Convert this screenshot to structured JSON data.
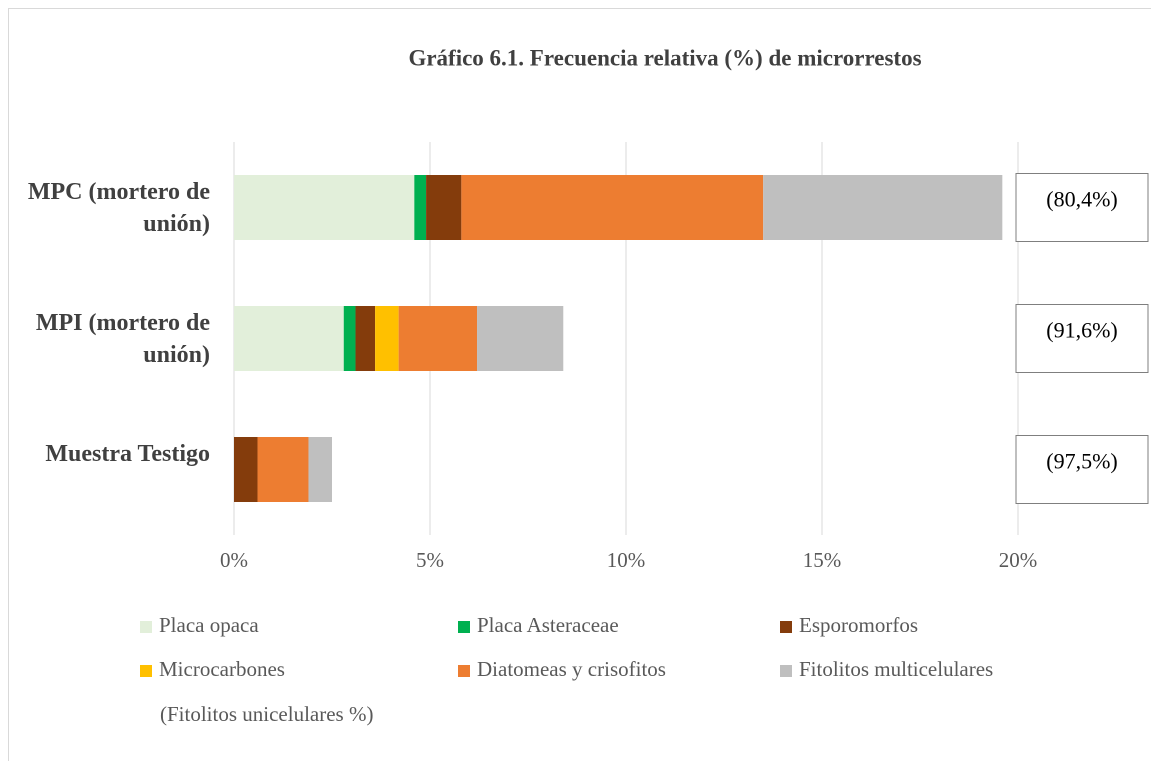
{
  "chart_data": {
    "type": "stacked_barh",
    "title": "Gráfico 6.1. Frecuencia relativa (%) de microrrestos",
    "categories": [
      "MPC (mortero de unión)",
      "MPI (mortero de unión)",
      "Muestra Testigo"
    ],
    "annotations": [
      "(80,4%)",
      "(91,6%)",
      "(97,5%)"
    ],
    "series": [
      {
        "name": "Placa opaca",
        "color": "#e2efda",
        "values": [
          4.6,
          2.8,
          0
        ]
      },
      {
        "name": "Placa Asteraceae",
        "color": "#00b050",
        "values": [
          0.3,
          0.3,
          0
        ]
      },
      {
        "name": "Esporomorfos",
        "color": "#843c0c",
        "values": [
          0.9,
          0.5,
          0.6
        ]
      },
      {
        "name": "Microcarbones",
        "color": "#ffc000",
        "values": [
          0,
          0.6,
          0
        ]
      },
      {
        "name": "Diatomeas y crisofitos",
        "color": "#ed7d31",
        "values": [
          7.7,
          2.0,
          1.3
        ]
      },
      {
        "name": "Fitolitos multicelulares",
        "color": "#bfbfbf",
        "values": [
          6.1,
          2.2,
          0.6
        ]
      }
    ],
    "legend_note": "(Fitolitos unicelulares %)",
    "xlim": [
      0,
      20
    ],
    "xticks": [
      {
        "value": 0,
        "label": "0%"
      },
      {
        "value": 5,
        "label": "5%"
      },
      {
        "value": 10,
        "label": "10%"
      },
      {
        "value": 15,
        "label": "15%"
      },
      {
        "value": 20,
        "label": "20%"
      }
    ],
    "grid": true
  }
}
